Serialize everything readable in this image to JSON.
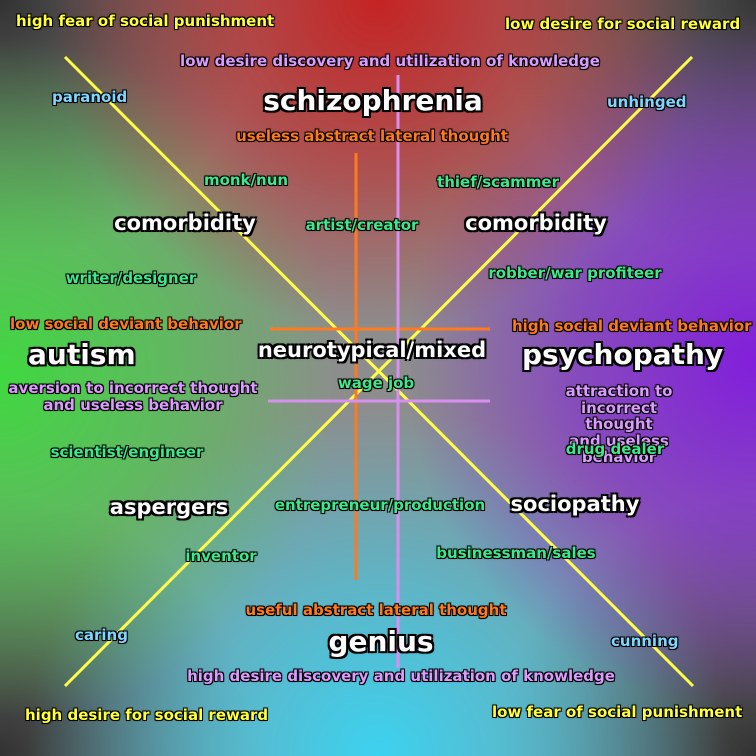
{
  "colors": {
    "yellow_labels": "#ffff3a",
    "violet_labels": "#dc9bff",
    "orange_labels": "#ff7a1e",
    "blue_labels": "#7fd6ff",
    "green_labels": "#3fe88a",
    "white_labels": "#fbfbfb",
    "yellow_lines": "#ffff4a",
    "orange_lines": "#ff7a1e",
    "violet_lines": "#d890f0",
    "top_region": "#c81e1e",
    "left_region": "#3cdc3c",
    "right_region": "#821edc",
    "bottom_region": "#3cd2f0"
  },
  "corners": {
    "top_left": "high fear of social punishment",
    "top_right": "low desire for social reward",
    "bottom_left": "high desire for social reward",
    "bottom_right": "low fear of social punishment"
  },
  "axes": {
    "top_violet": "low desire discovery and utilization of knowledge",
    "top_orange": "useless abstract lateral thought",
    "bottom_orange": "useful abstract lateral thought",
    "bottom_violet": "high desire discovery and utilization of knowledge",
    "left_orange": "low social deviant behavior",
    "left_violet": "aversion to incorrect thought\nand useless behavior",
    "right_orange": "high social deviant behavior",
    "right_violet": "attraction to incorrect thought\nand useless behavior"
  },
  "poles": {
    "top": "schizophrenia",
    "bottom": "genius",
    "left": "autism",
    "right": "psychopathy",
    "center": "neurotypical/mixed"
  },
  "traits": {
    "top_left": "paranoid",
    "top_right": "unhinged",
    "bottom_left": "caring",
    "bottom_right": "cunning"
  },
  "conditions": {
    "comorbidity_left": "comorbidity",
    "comorbidity_right": "comorbidity",
    "aspergers": "aspergers",
    "sociopathy": "sociopathy"
  },
  "occupations": {
    "monk": "monk/nun",
    "thief": "thief/scammer",
    "artist": "artist/creator",
    "writer": "writer/designer",
    "robber": "robber/war profiteer",
    "wage": "wage job",
    "scientist": "scientist/engineer",
    "drug": "drug dealer",
    "entrepreneur": "entrepreneur/production",
    "inventor": "inventor",
    "businessman": "businessman/sales"
  }
}
